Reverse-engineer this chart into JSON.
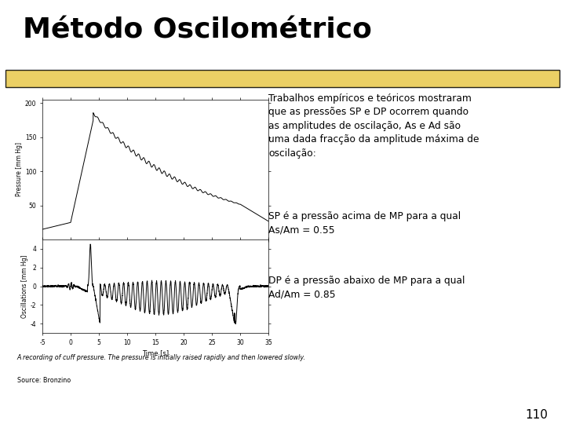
{
  "title": "Método Oscilométrico",
  "highlight_color": "#E8C84A",
  "background_color": "#FFFFFF",
  "title_fontsize": 26,
  "text_block1": "Trabalhos empíricos e teóricos mostraram\nque as pressões SP e DP ocorrem quando\nas amplitudes de oscilação, As e Ad são\numa dada fracção da amplitude máxima de\noscilação:",
  "text_block2": "SP é a pressão acima de MP para a qual\nAs/Am = 0.55",
  "text_block3": "DP é a pressão abaixo de MP para a qual\nAd/Am = 0.85",
  "caption": "A recording of cuff pressure. The pressure is initially raised rapidly and then lowered slowly.",
  "source": "Source: Bronzino",
  "page_number": "110",
  "subplot1_ylabel": "Pressure [mm Hg]",
  "subplot2_ylabel": "Oscillations [mm Hg]",
  "xlabel": "Time [s]",
  "time_range": [
    -5,
    35
  ],
  "pressure_ylim": [
    0,
    210
  ],
  "osc_ylim": [
    -5,
    5
  ]
}
